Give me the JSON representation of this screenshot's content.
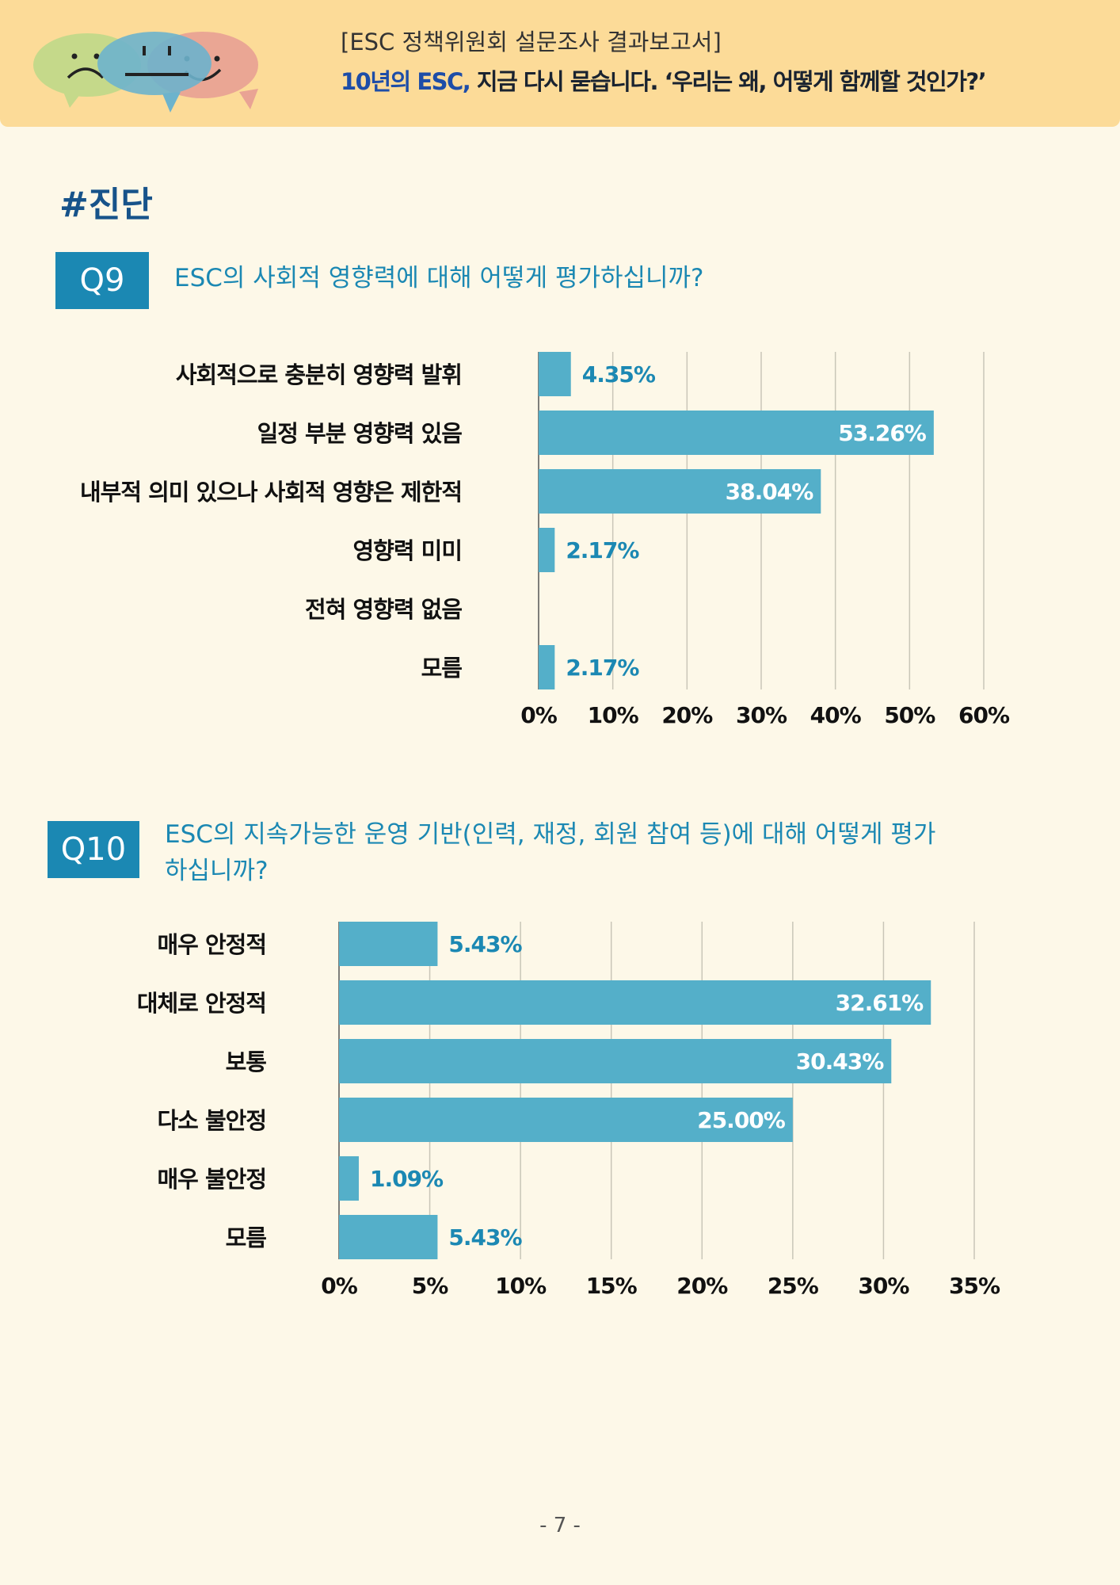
{
  "header": {
    "subtitle": "[ESC 정책위원회 설문조사 결과보고서]",
    "title_part1": "10년의 ESC,",
    "title_part2": " 지금 다시 묻습니다. ‘우리는 왜, 어떻게 함께할 것인가?’"
  },
  "section_tag": "#진단",
  "q9": {
    "number": "Q9",
    "question": "ESC의 사회적 영향력에 대해 어떻게 평가하십니까?"
  },
  "q10": {
    "number": "Q10",
    "question_line1": "ESC의 지속가능한 운영 기반(인력, 재정, 회원 참여 등)에 대해 어떻게 평가",
    "question_line2": "하십니까?"
  },
  "colors": {
    "bar": "#54afc9",
    "accent": "#1b88b3",
    "header_bg": "#fcdb98",
    "page_bg": "#fdf8e8"
  },
  "chart_data": [
    {
      "type": "bar",
      "orientation": "horizontal",
      "title": "ESC의 사회적 영향력에 대해 어떻게 평가하십니까?",
      "categories": [
        "사회적으로 충분히 영향력 발휘",
        "일정 부분 영향력 있음",
        "내부적 의미 있으나 사회적 영향은 제한적",
        "영향력 미미",
        "전혀 영향력 없음",
        "모름"
      ],
      "values": [
        4.35,
        53.26,
        38.04,
        2.17,
        0,
        2.17
      ],
      "labels": [
        "4.35%",
        "53.26%",
        "38.04%",
        "2.17%",
        "",
        "2.17%"
      ],
      "xlim": [
        0,
        60
      ],
      "ticks": [
        "0%",
        "10%",
        "20%",
        "30%",
        "40%",
        "50%",
        "60%"
      ],
      "grid": true
    },
    {
      "type": "bar",
      "orientation": "horizontal",
      "title": "ESC의 지속가능한 운영 기반(인력, 재정, 회원 참여 등)에 대해 어떻게 평가하십니까?",
      "categories": [
        "매우 안정적",
        "대체로 안정적",
        "보통",
        "다소 불안정",
        "매우 불안정",
        "모름"
      ],
      "values": [
        5.43,
        32.61,
        30.43,
        25.0,
        1.09,
        5.43
      ],
      "labels": [
        "5.43%",
        "32.61%",
        "30.43%",
        "25.00%",
        "1.09%",
        "5.43%"
      ],
      "xlim": [
        0,
        35
      ],
      "ticks": [
        "0%",
        "5%",
        "10%",
        "15%",
        "20%",
        "25%",
        "30%",
        "35%"
      ],
      "grid": true
    }
  ],
  "page_number": "- 7 -"
}
